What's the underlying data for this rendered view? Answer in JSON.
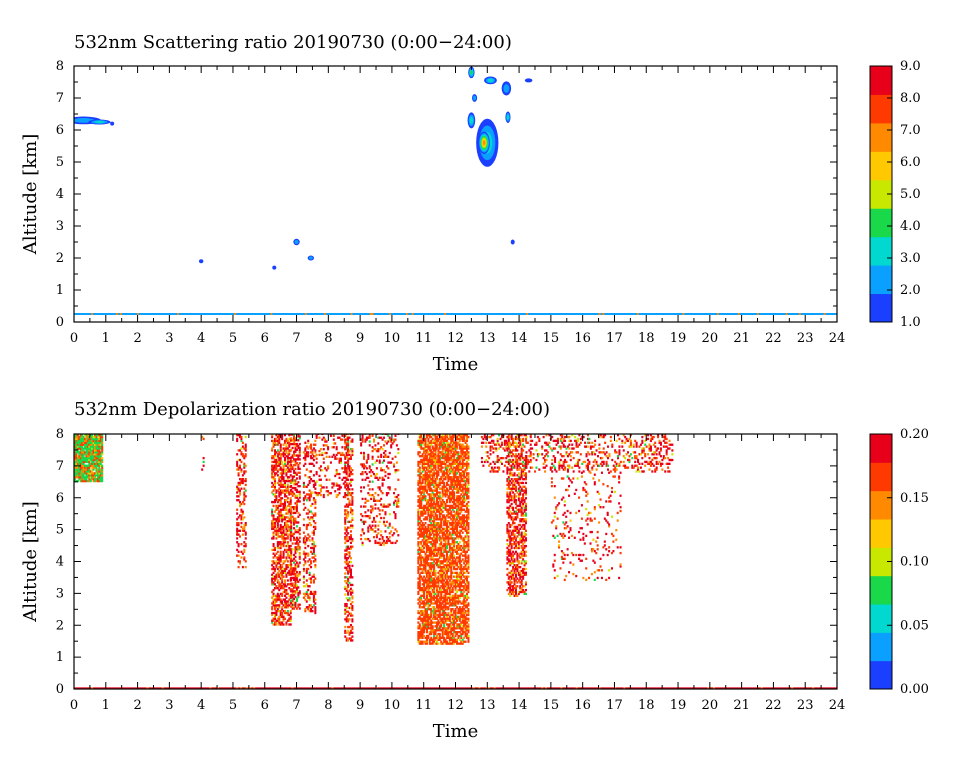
{
  "chart_data": [
    {
      "type": "heatmap",
      "title": "532nm Scattering ratio  20190730 (0:00−24:00)",
      "xlabel": "Time",
      "ylabel": "Altitude [km]",
      "xlim": [
        0,
        24
      ],
      "ylim": [
        0,
        8
      ],
      "x_ticks": [
        "0",
        "1",
        "2",
        "3",
        "4",
        "5",
        "6",
        "7",
        "8",
        "9",
        "10",
        "11",
        "12",
        "13",
        "14",
        "15",
        "16",
        "17",
        "18",
        "19",
        "20",
        "21",
        "22",
        "23",
        "24"
      ],
      "y_ticks": [
        "0",
        "1",
        "2",
        "3",
        "4",
        "5",
        "6",
        "7",
        "8"
      ],
      "colorbar": {
        "range": [
          1.0,
          9.0
        ],
        "ticks": [
          "1.0",
          "2.0",
          "3.0",
          "4.0",
          "5.0",
          "6.0",
          "7.0",
          "8.0",
          "9.0"
        ],
        "colormap": [
          "#1a3fff",
          "#0aa0ff",
          "#00d8d0",
          "#19d94a",
          "#c9e800",
          "#ffc800",
          "#ff8a00",
          "#ff3a00",
          "#e8001a"
        ]
      },
      "features": [
        {
          "x": 0.3,
          "y": 6.3,
          "dx": 0.55,
          "dy": 0.12,
          "value": 2.5
        },
        {
          "x": 0.8,
          "y": 6.25,
          "dx": 0.35,
          "dy": 0.08,
          "value": 4.0
        },
        {
          "x": 1.2,
          "y": 6.2,
          "dx": 0.05,
          "dy": 0.04,
          "value": 2.0
        },
        {
          "x": 4.0,
          "y": 1.9,
          "dx": 0.07,
          "dy": 0.05,
          "value": 2.0
        },
        {
          "x": 6.3,
          "y": 1.7,
          "dx": 0.05,
          "dy": 0.06,
          "value": 2.0
        },
        {
          "x": 7.0,
          "y": 2.5,
          "dx": 0.1,
          "dy": 0.1,
          "value": 2.5
        },
        {
          "x": 7.45,
          "y": 2.0,
          "dx": 0.1,
          "dy": 0.08,
          "value": 2.5
        },
        {
          "x": 12.5,
          "y": 7.8,
          "dx": 0.1,
          "dy": 0.18,
          "value": 4.5
        },
        {
          "x": 12.6,
          "y": 7.0,
          "dx": 0.08,
          "dy": 0.12,
          "value": 2.5
        },
        {
          "x": 12.5,
          "y": 6.3,
          "dx": 0.12,
          "dy": 0.25,
          "value": 3.5
        },
        {
          "x": 13.0,
          "y": 5.6,
          "dx": 0.35,
          "dy": 0.75,
          "value": 3.8
        },
        {
          "x": 12.9,
          "y": 5.6,
          "dx": 0.18,
          "dy": 0.35,
          "value": 6.8
        },
        {
          "x": 13.1,
          "y": 7.55,
          "dx": 0.2,
          "dy": 0.12,
          "value": 4.0
        },
        {
          "x": 13.6,
          "y": 7.3,
          "dx": 0.15,
          "dy": 0.22,
          "value": 3.0
        },
        {
          "x": 13.65,
          "y": 6.4,
          "dx": 0.08,
          "dy": 0.18,
          "value": 3.5
        },
        {
          "x": 14.3,
          "y": 7.55,
          "dx": 0.12,
          "dy": 0.04,
          "value": 2.0
        },
        {
          "x": 13.8,
          "y": 2.5,
          "dx": 0.05,
          "dy": 0.08,
          "value": 1.8
        }
      ],
      "surface_layer": {
        "altitude": 0.25,
        "value": 2.0
      }
    },
    {
      "type": "heatmap",
      "title": "532nm Depolarization ratio  20190730 (0:00−24:00)",
      "xlabel": "Time",
      "ylabel": "Altitude [km]",
      "xlim": [
        0,
        24
      ],
      "ylim": [
        0,
        8
      ],
      "x_ticks": [
        "0",
        "1",
        "2",
        "3",
        "4",
        "5",
        "6",
        "7",
        "8",
        "9",
        "10",
        "11",
        "12",
        "13",
        "14",
        "15",
        "16",
        "17",
        "18",
        "19",
        "20",
        "21",
        "22",
        "23",
        "24"
      ],
      "y_ticks": [
        "0",
        "1",
        "2",
        "3",
        "4",
        "5",
        "6",
        "7",
        "8"
      ],
      "colorbar": {
        "range": [
          0.0,
          0.2
        ],
        "ticks": [
          "0.00",
          "0.05",
          "0.10",
          "0.15",
          "0.20"
        ],
        "colormap": [
          "#1a3fff",
          "#0aa0ff",
          "#00d8d0",
          "#19d94a",
          "#c9e800",
          "#ffc800",
          "#ff8a00",
          "#ff3a00",
          "#e8001a"
        ]
      },
      "features": [
        {
          "x0": 0.0,
          "x1": 0.9,
          "y0": 6.5,
          "y1": 8.0,
          "density": 0.95,
          "value": 0.08
        },
        {
          "x0": 4.0,
          "x1": 4.05,
          "y0": 6.5,
          "y1": 8.0,
          "density": 0.2,
          "value": 0.2
        },
        {
          "x0": 5.1,
          "x1": 5.4,
          "y0": 3.8,
          "y1": 8.0,
          "density": 0.35,
          "value": 0.2
        },
        {
          "x0": 6.2,
          "x1": 6.8,
          "y0": 2.0,
          "y1": 8.0,
          "density": 0.55,
          "value": 0.18
        },
        {
          "x0": 6.8,
          "x1": 7.1,
          "y0": 2.5,
          "y1": 8.0,
          "density": 0.5,
          "value": 0.18
        },
        {
          "x0": 7.2,
          "x1": 7.6,
          "y0": 2.3,
          "y1": 7.8,
          "density": 0.3,
          "value": 0.2
        },
        {
          "x0": 7.6,
          "x1": 8.6,
          "y0": 6.0,
          "y1": 8.0,
          "density": 0.2,
          "value": 0.2
        },
        {
          "x0": 8.5,
          "x1": 8.75,
          "y0": 1.5,
          "y1": 8.0,
          "density": 0.45,
          "value": 0.2
        },
        {
          "x0": 9.0,
          "x1": 10.2,
          "y0": 4.5,
          "y1": 8.0,
          "density": 0.2,
          "value": 0.2
        },
        {
          "x0": 10.8,
          "x1": 12.4,
          "y0": 1.4,
          "y1": 8.0,
          "density": 0.7,
          "value": 0.17
        },
        {
          "x0": 12.8,
          "x1": 13.6,
          "y0": 6.8,
          "y1": 8.0,
          "density": 0.3,
          "value": 0.2
        },
        {
          "x0": 13.6,
          "x1": 14.2,
          "y0": 2.9,
          "y1": 8.0,
          "density": 0.55,
          "value": 0.18
        },
        {
          "x0": 14.2,
          "x1": 18.8,
          "y0": 6.8,
          "y1": 8.0,
          "density": 0.25,
          "value": 0.2
        },
        {
          "x0": 15.0,
          "x1": 17.2,
          "y0": 3.4,
          "y1": 6.8,
          "density": 0.08,
          "value": 0.2
        }
      ],
      "surface_layer": {
        "altitude": 0.02,
        "value": 0.2
      }
    }
  ]
}
